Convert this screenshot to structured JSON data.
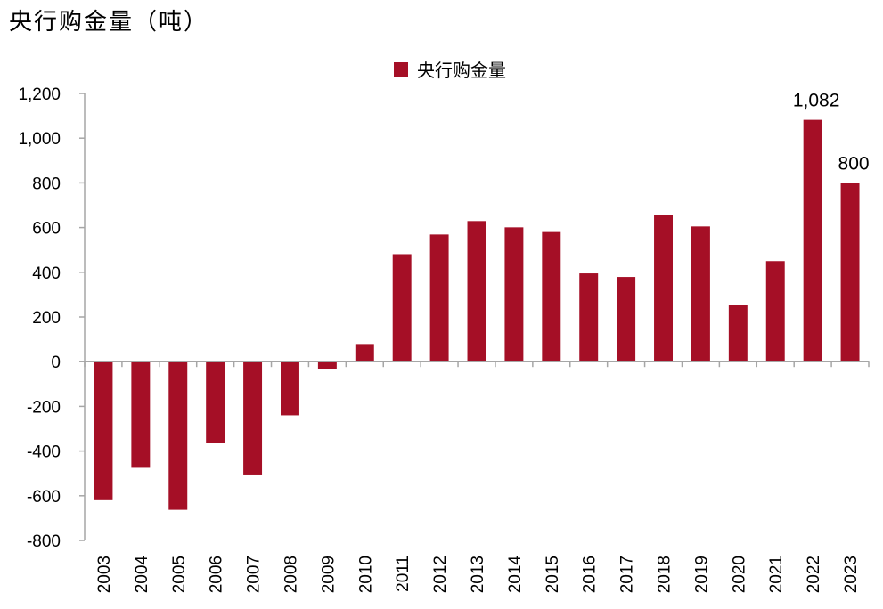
{
  "colors": {
    "bar": "#A50F26",
    "axis": "#A6A6A6"
  },
  "chart_data": {
    "type": "bar",
    "title": "央行购金量（吨）",
    "xlabel": "",
    "ylabel": "",
    "categories": [
      "2003",
      "2004",
      "2005",
      "2006",
      "2007",
      "2008",
      "2009",
      "2010",
      "2011",
      "2012",
      "2013",
      "2014",
      "2015",
      "2016",
      "2017",
      "2018",
      "2019",
      "2020",
      "2021",
      "2022",
      "2023"
    ],
    "series": [
      {
        "name": "央行购金量",
        "values": [
          -620,
          -475,
          -663,
          -365,
          -505,
          -240,
          -34,
          79,
          481,
          569,
          629,
          601,
          580,
          395,
          379,
          656,
          605,
          255,
          450,
          1082,
          800
        ]
      }
    ],
    "ylim": [
      -800,
      1200
    ],
    "yticks": [
      -800,
      -600,
      -400,
      -200,
      0,
      200,
      400,
      600,
      800,
      1000,
      1200
    ],
    "ytick_labels": [
      "-800",
      "-600",
      "-400",
      "-200",
      "0",
      "200",
      "400",
      "600",
      "800",
      "1,000",
      "1,200"
    ],
    "data_labels": [
      {
        "category": "2022",
        "text": "1,082"
      },
      {
        "category": "2023",
        "text": "800"
      }
    ],
    "legend": {
      "position": "top-center"
    },
    "grid": false
  }
}
